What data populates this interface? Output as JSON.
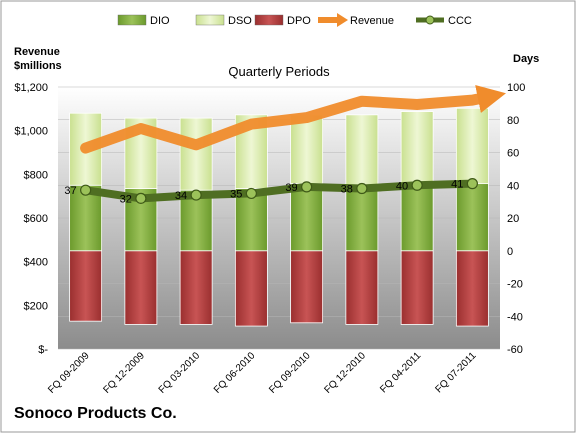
{
  "chart_data": {
    "type": "bar",
    "title": "Quarterly Periods",
    "footer_title": "Sonoco Products Co.",
    "left_axis_title_line1": "Revenue",
    "left_axis_title_line2": "$millions",
    "right_axis_title": "Days",
    "categories": [
      "FQ 09-2009",
      "FQ 12-2009",
      "FQ 03-2010",
      "FQ 06-2010",
      "FQ 09-2010",
      "FQ 12-2010",
      "FQ 04-2011",
      "FQ 07-2011"
    ],
    "series": [
      {
        "name": "DIO",
        "axis": "right",
        "kind": "stacked-bar",
        "color": "#7fa63a",
        "values": [
          40,
          38,
          37,
          38,
          41,
          40,
          41,
          41
        ]
      },
      {
        "name": "DSO",
        "axis": "right",
        "kind": "stacked-bar",
        "color": "#d9ecab",
        "values": [
          44,
          43,
          44,
          45,
          42,
          43,
          44,
          46
        ]
      },
      {
        "name": "DPO",
        "axis": "right",
        "kind": "bar-below-zero",
        "color": "#b03a3a",
        "values": [
          -43,
          -45,
          -45,
          -46,
          -44,
          -45,
          -45,
          -46
        ]
      },
      {
        "name": "Revenue",
        "axis": "left",
        "kind": "arrow-line",
        "color": "#f08c2c",
        "values": [
          920,
          1010,
          935,
          1030,
          1060,
          1135,
          1120,
          1140
        ]
      },
      {
        "name": "CCC",
        "axis": "right",
        "kind": "line-markers",
        "color": "#5a7a2a",
        "values": [
          37,
          32,
          34,
          35,
          39,
          38,
          40,
          41
        ]
      }
    ],
    "left_axis": {
      "min": 0,
      "max": 1200,
      "ticks": [
        "$-",
        "$200",
        "$400",
        "$600",
        "$800",
        "$1,000",
        "$1,200"
      ]
    },
    "right_axis": {
      "min": -60,
      "max": 100,
      "ticks": [
        "-60",
        "-40",
        "-20",
        "0",
        "20",
        "40",
        "60",
        "80",
        "100"
      ]
    },
    "legend_position": "top",
    "grid": true
  }
}
